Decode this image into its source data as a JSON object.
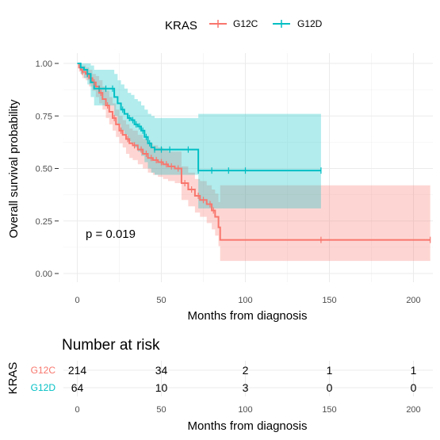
{
  "chart_data": {
    "type": "line",
    "subtype": "kaplan-meier",
    "legend": {
      "title": "KRAS",
      "placement": "top",
      "entries": [
        "G12C",
        "G12D"
      ]
    },
    "xlabel": "Months from diagnosis",
    "ylabel": "Overall survival probability",
    "xlim": [
      0,
      210
    ],
    "ylim": [
      0,
      1
    ],
    "xticks": [
      "0",
      "50",
      "100",
      "150",
      "200"
    ],
    "yticks": [
      "0.00",
      "0.25",
      "0.50",
      "0.75",
      "1.00"
    ],
    "grid": true,
    "annotation": "p = 0.019",
    "series": [
      {
        "name": "G12C",
        "color": "#F8766D",
        "fill": "#F8766D",
        "x": [
          0,
          1,
          2,
          3,
          5,
          7,
          9,
          11,
          13,
          15,
          17,
          19,
          21,
          23,
          25,
          27,
          29,
          31,
          33,
          36,
          39,
          42,
          45,
          48,
          51,
          54,
          58,
          62,
          66,
          70,
          73,
          77,
          80,
          82,
          84,
          85,
          210
        ],
        "y": [
          1.0,
          0.98,
          0.97,
          0.96,
          0.95,
          0.93,
          0.91,
          0.89,
          0.86,
          0.83,
          0.8,
          0.77,
          0.74,
          0.71,
          0.68,
          0.66,
          0.64,
          0.62,
          0.61,
          0.59,
          0.57,
          0.55,
          0.54,
          0.53,
          0.52,
          0.51,
          0.5,
          0.43,
          0.4,
          0.37,
          0.35,
          0.33,
          0.3,
          0.27,
          0.22,
          0.16,
          0.16
        ],
        "upper": [
          1.0,
          1.0,
          0.99,
          0.99,
          0.98,
          0.97,
          0.95,
          0.94,
          0.92,
          0.89,
          0.87,
          0.84,
          0.81,
          0.78,
          0.75,
          0.73,
          0.71,
          0.69,
          0.68,
          0.66,
          0.64,
          0.62,
          0.61,
          0.6,
          0.59,
          0.58,
          0.58,
          0.51,
          0.48,
          0.45,
          0.44,
          0.42,
          0.4,
          0.38,
          0.34,
          0.42,
          0.42
        ],
        "lower": [
          1.0,
          0.96,
          0.95,
          0.93,
          0.92,
          0.89,
          0.87,
          0.84,
          0.81,
          0.78,
          0.74,
          0.71,
          0.68,
          0.65,
          0.62,
          0.6,
          0.57,
          0.55,
          0.54,
          0.52,
          0.5,
          0.48,
          0.47,
          0.46,
          0.45,
          0.44,
          0.43,
          0.35,
          0.32,
          0.29,
          0.27,
          0.24,
          0.21,
          0.18,
          0.13,
          0.06,
          0.06
        ],
        "censors": [
          3,
          6,
          10,
          14,
          18,
          22,
          26,
          30,
          34,
          38,
          41,
          44,
          47,
          50,
          53,
          56,
          60,
          64,
          68,
          72,
          75,
          79,
          81,
          145,
          210
        ]
      },
      {
        "name": "G12D",
        "color": "#00BFC4",
        "fill": "#00BFC4",
        "x": [
          0,
          2,
          4,
          6,
          8,
          10,
          20,
          22,
          24,
          26,
          28,
          30,
          32,
          34,
          36,
          38,
          40,
          42,
          44,
          46,
          48,
          72,
          145
        ],
        "y": [
          1.0,
          0.98,
          0.97,
          0.95,
          0.91,
          0.88,
          0.88,
          0.84,
          0.81,
          0.78,
          0.76,
          0.74,
          0.73,
          0.71,
          0.7,
          0.68,
          0.65,
          0.62,
          0.6,
          0.59,
          0.59,
          0.49,
          0.49
        ],
        "upper": [
          1.0,
          1.0,
          1.0,
          1.0,
          0.99,
          0.97,
          0.97,
          0.95,
          0.92,
          0.9,
          0.88,
          0.86,
          0.85,
          0.83,
          0.82,
          0.8,
          0.78,
          0.76,
          0.75,
          0.74,
          0.74,
          0.76,
          0.76
        ],
        "lower": [
          1.0,
          0.95,
          0.93,
          0.9,
          0.84,
          0.8,
          0.8,
          0.75,
          0.71,
          0.68,
          0.66,
          0.63,
          0.62,
          0.6,
          0.58,
          0.56,
          0.53,
          0.5,
          0.48,
          0.47,
          0.47,
          0.31,
          0.31
        ],
        "censors": [
          6,
          13,
          17,
          21,
          27,
          31,
          33,
          35,
          37,
          39,
          41,
          43,
          46,
          50,
          55,
          66,
          72,
          80,
          90,
          100,
          145
        ]
      }
    ],
    "risk_table": {
      "title": "Number at risk",
      "ylabel": "KRAS",
      "xlabel": "Months from diagnosis",
      "xticks": [
        "0",
        "50",
        "100",
        "150",
        "200"
      ],
      "time_points": [
        0,
        50,
        100,
        150,
        200
      ],
      "rows": [
        {
          "name": "G12C",
          "color": "#F8766D",
          "values": [
            214,
            34,
            2,
            1,
            1
          ]
        },
        {
          "name": "G12D",
          "color": "#00BFC4",
          "values": [
            64,
            10,
            3,
            0,
            0
          ]
        }
      ]
    }
  }
}
